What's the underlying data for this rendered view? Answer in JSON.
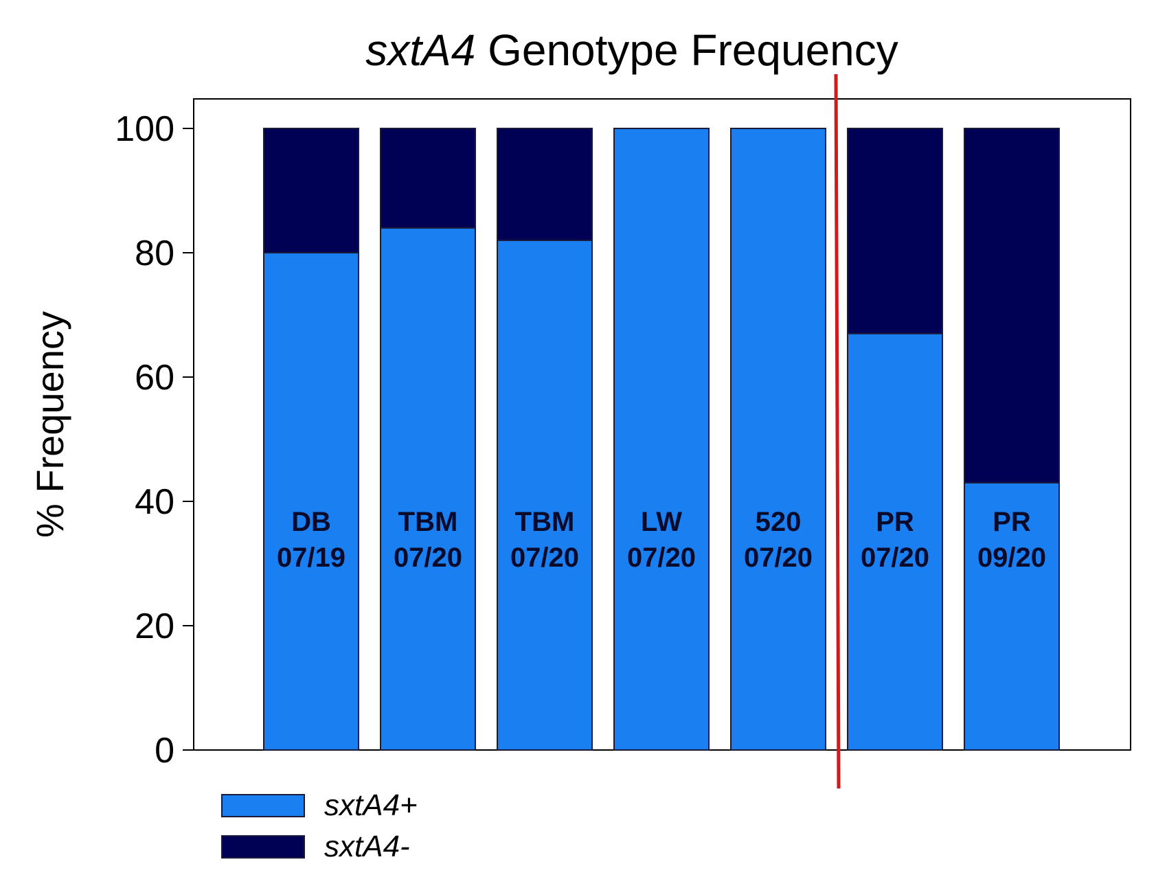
{
  "chart_data": {
    "type": "bar",
    "stacked": true,
    "title": "sxtA4 Genotype Frequency",
    "title_parts": {
      "italic": "sxtA4",
      "rest": " Genotype Frequency"
    },
    "xlabel": "",
    "ylabel": "% Frequency",
    "ylim": [
      0,
      100
    ],
    "yticks": [
      0,
      20,
      40,
      60,
      80,
      100
    ],
    "grid": false,
    "categories": [
      {
        "line1": "DB",
        "line2": "07/19"
      },
      {
        "line1": "TBM",
        "line2": "07/20"
      },
      {
        "line1": "TBM",
        "line2": "07/20"
      },
      {
        "line1": "LW",
        "line2": "07/20"
      },
      {
        "line1": "520",
        "line2": "07/20"
      },
      {
        "line1": "PR",
        "line2": "07/20"
      },
      {
        "line1": "PR",
        "line2": "09/20"
      }
    ],
    "series": [
      {
        "name": "sxtA4+",
        "color": "#1a7ff0",
        "values": [
          80,
          84,
          82,
          100,
          100,
          67,
          43
        ]
      },
      {
        "name": "sxtA4-",
        "color": "#000055",
        "values": [
          20,
          16,
          18,
          0,
          0,
          33,
          57
        ]
      }
    ],
    "divider": {
      "between": [
        4,
        5
      ],
      "color": "#d11a1a"
    },
    "legend_position": "bottom-left"
  }
}
